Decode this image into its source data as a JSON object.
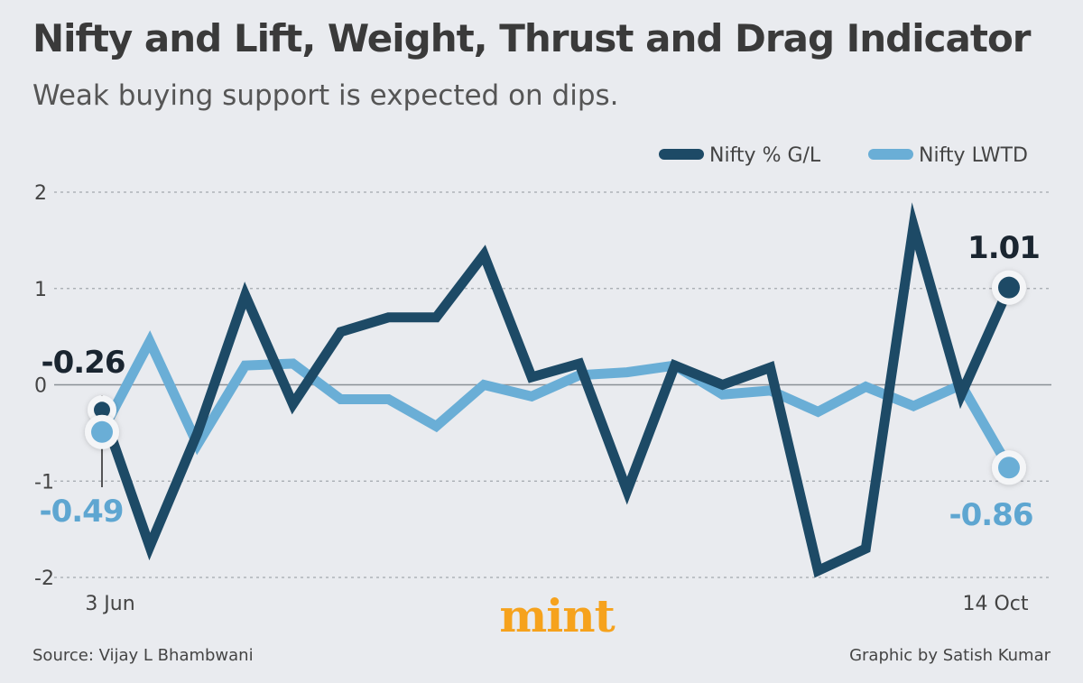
{
  "header": {
    "title": "Nifty and Lift, Weight, Thrust and Drag Indicator",
    "subtitle": "Weak buying support is expected on dips."
  },
  "footer": {
    "source": "Source: Vijay L Bhambwani",
    "credit": "Graphic by Satish Kumar",
    "logo": "mint"
  },
  "colors": {
    "dark": "#1d4a66",
    "light": "#6aaed6",
    "logo": "#f6a21c",
    "grid": "#9aa0a6",
    "text": "#333333"
  },
  "chart_data": {
    "type": "line",
    "title": "Nifty and Lift, Weight, Thrust and Drag Indicator",
    "subtitle": "Weak buying support is expected on dips.",
    "ylim": [
      -2,
      2
    ],
    "y_ticks": [
      "2",
      "1",
      "0",
      "-1",
      "-2"
    ],
    "y_tick_values": [
      2,
      1,
      0,
      -1,
      -2
    ],
    "x_labels": [
      "3 Jun",
      "14 Oct"
    ],
    "legend_position": "top-right",
    "grid": true,
    "series": [
      {
        "name": "Nifty % G/L",
        "color": "#1d4a66",
        "values": [
          -0.26,
          -1.68,
          -0.5,
          0.93,
          -0.2,
          0.55,
          0.7,
          0.7,
          1.35,
          0.08,
          0.22,
          -1.1,
          0.2,
          0.0,
          0.18,
          -1.93,
          -1.7,
          1.65,
          -0.1,
          1.01
        ]
      },
      {
        "name": "Nifty LWTD",
        "color": "#6aaed6",
        "values": [
          -0.49,
          0.45,
          -0.62,
          0.2,
          0.22,
          -0.15,
          -0.15,
          -0.43,
          0.0,
          -0.12,
          0.1,
          0.13,
          0.2,
          -0.1,
          -0.06,
          -0.28,
          -0.02,
          -0.22,
          0.0,
          -0.86
        ]
      }
    ],
    "annotations": [
      {
        "text": "-0.26",
        "series": "Nifty % G/L",
        "index": 0
      },
      {
        "text": "-0.49",
        "series": "Nifty LWTD",
        "index": 0
      },
      {
        "text": "1.01",
        "series": "Nifty % G/L",
        "index": 19
      },
      {
        "text": "-0.86",
        "series": "Nifty LWTD",
        "index": 19
      }
    ]
  }
}
